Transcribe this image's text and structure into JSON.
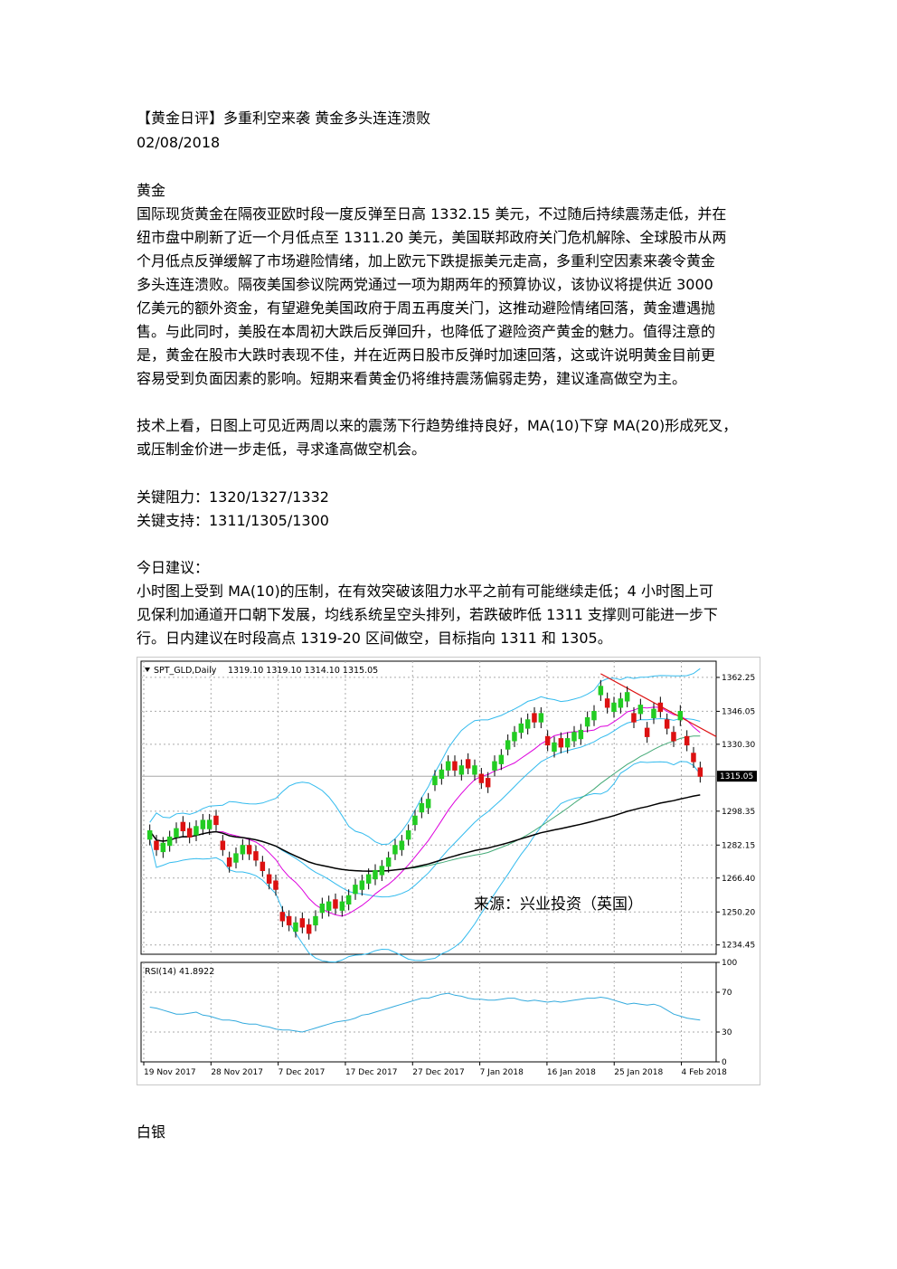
{
  "article": {
    "title": "【黄金日评】多重利空来袭 黄金多头连连溃败",
    "date": "02/08/2018",
    "gold_heading": "黄金",
    "gold_lines": [
      "国际现货黄金在隔夜亚欧时段一度反弹至日高 1332.15 美元，不过随后持续震荡走低，并在",
      "纽市盘中刷新了近一个月低点至 1311.20 美元，美国联邦政府关门危机解除、全球股市从两",
      "个月低点反弹缓解了市场避险情绪，加上欧元下跌提振美元走高，多重利空因素来袭令黄金",
      "多头连连溃败。隔夜美国参议院两党通过一项为期两年的预算协议，该协议将提供近  3000",
      "亿美元的额外资金，有望避免美国政府于周五再度关门，这推动避险情绪回落，黄金遭遇抛",
      "售。与此同时，美股在本周初大跌后反弹回升，也降低了避险资产黄金的魅力。值得注意的",
      "是，黄金在股市大跌时表现不佳，并在近两日股市反弹时加速回落，这或许说明黄金目前更",
      "容易受到负面因素的影响。短期来看黄金仍将维持震荡偏弱走势，建议逢高做空为主。"
    ],
    "tech_lines": [
      "技术上看，日图上可见近两周以来的震荡下行趋势维持良好，MA(10)下穿 MA(20)形成死叉，",
      "或压制金价进一步走低，寻求逢高做空机会。"
    ],
    "resistance": "关键阻力：1320/1327/1332",
    "support": "关键支持：1311/1305/1300",
    "advice_heading": "今日建议：",
    "advice_lines": [
      "小时图上受到  MA(10)的压制，在有效突破该阻力水平之前有可能继续走低；4  小时图上可",
      "见保利加通道开口朝下发展，均线系统呈空头排列，若跌破昨低 1311 支撑则可能进一步下",
      "行。日内建议在时段高点 1319-20 区间做空，目标指向 1311 和 1305。"
    ],
    "silver_heading": "白银"
  },
  "chart_data": {
    "type": "candlestick",
    "title": "SPT_GLD,Daily",
    "ohlc_header": "1319.10 1319.10 1314.10 1315.05",
    "source_label": "来源：兴业投资（英国）",
    "current_price": "1315.05",
    "price_ticks": [
      "1362.25",
      "1346.05",
      "1330.30",
      "1298.35",
      "1282.15",
      "1266.40",
      "1250.20",
      "1234.45"
    ],
    "ylim": [
      1230,
      1370
    ],
    "date_labels": [
      "19 Nov 2017",
      "28 Nov 2017",
      "7 Dec 2017",
      "17 Dec 2017",
      "27 Dec 2017",
      "7 Jan 2018",
      "16 Jan 2018",
      "25 Jan 2018",
      "4 Feb 2018"
    ],
    "rsi_label": "RSI(14) 41.8922",
    "rsi_ticks": [
      "100",
      "70",
      "30",
      "0"
    ],
    "colors": {
      "bull": "#22cc22",
      "bear": "#dd1111",
      "bollinger": "#33bbee",
      "ma_fast": "#dd00dd",
      "ma_mid": "#44aa77",
      "ma_slow": "#000000",
      "trend": "#dd1111",
      "rsi": "#33aadd"
    },
    "closes": [
      1289,
      1280,
      1283,
      1286,
      1290,
      1289,
      1286,
      1291,
      1294,
      1294,
      1292,
      1280,
      1272,
      1278,
      1282,
      1278,
      1275,
      1270,
      1264,
      1261,
      1246,
      1244,
      1245,
      1243,
      1240,
      1248,
      1254,
      1255,
      1252,
      1255,
      1258,
      1263,
      1265,
      1268,
      1270,
      1272,
      1276,
      1282,
      1284,
      1289,
      1296,
      1302,
      1304,
      1315,
      1318,
      1322,
      1318,
      1320,
      1319,
      1320,
      1312,
      1310,
      1322,
      1325,
      1332,
      1336,
      1340,
      1342,
      1341,
      1345,
      1330,
      1331,
      1329,
      1333,
      1336,
      1337,
      1343,
      1346,
      1358,
      1348,
      1350,
      1352,
      1355,
      1341,
      1349,
      1334,
      1347,
      1346,
      1338,
      1332,
      1346,
      1330,
      1322,
      1315
    ],
    "bull": [
      1,
      0,
      1,
      1,
      1,
      0,
      0,
      1,
      1,
      1,
      0,
      0,
      0,
      1,
      1,
      0,
      0,
      0,
      0,
      0,
      0,
      0,
      1,
      0,
      0,
      1,
      1,
      1,
      0,
      1,
      1,
      1,
      1,
      1,
      1,
      1,
      1,
      1,
      1,
      1,
      1,
      1,
      1,
      1,
      1,
      1,
      0,
      1,
      0,
      1,
      0,
      0,
      1,
      1,
      1,
      1,
      1,
      1,
      0,
      1,
      0,
      1,
      0,
      1,
      1,
      1,
      1,
      1,
      1,
      0,
      1,
      1,
      1,
      0,
      1,
      0,
      1,
      0,
      0,
      0,
      1,
      0,
      0,
      0
    ],
    "rsi_values": [
      55,
      54,
      52,
      50,
      48,
      48,
      49,
      50,
      47,
      46,
      44,
      42,
      42,
      41,
      39,
      38,
      38,
      36,
      35,
      33,
      32,
      32,
      31,
      30,
      32,
      34,
      36,
      38,
      40,
      41,
      42,
      44,
      47,
      48,
      50,
      52,
      54,
      56,
      58,
      60,
      62,
      64,
      64,
      66,
      68,
      69,
      67,
      66,
      64,
      63,
      63,
      62,
      62,
      63,
      64,
      64,
      62,
      61,
      62,
      61,
      60,
      61,
      60,
      61,
      62,
      63,
      64,
      64,
      65,
      64,
      62,
      60,
      58,
      59,
      58,
      57,
      58,
      56,
      52,
      48,
      46,
      44,
      43,
      42
    ]
  }
}
